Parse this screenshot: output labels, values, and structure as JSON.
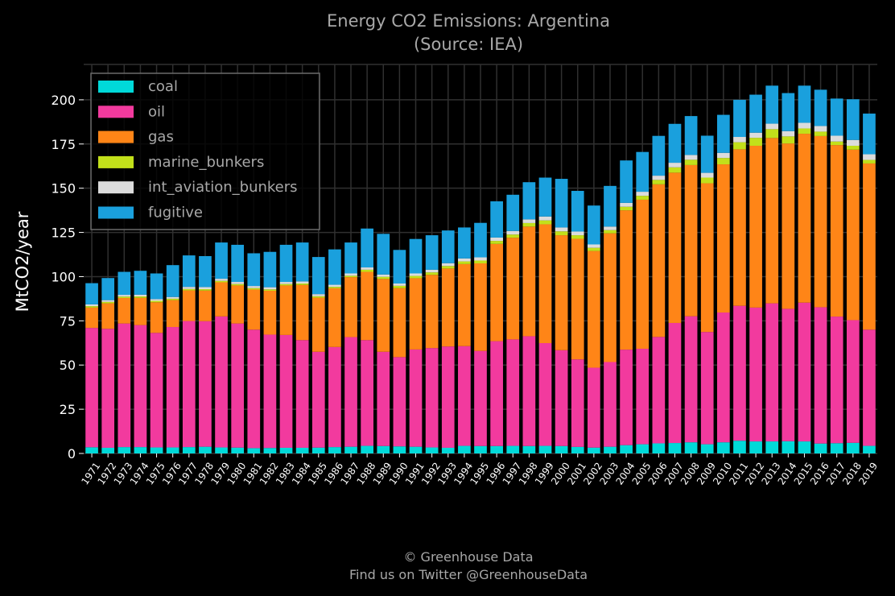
{
  "header": {
    "title": "Energy CO2 Emissions: Argentina",
    "subtitle": "(Source: IEA)"
  },
  "footer": {
    "line1": "© Greenhouse Data",
    "line2": "Find us on Twitter @GreenhouseData"
  },
  "colors": {
    "background": "#000000",
    "grid": "#303030",
    "text": "#a8a8a8",
    "coal": "#00d9d9",
    "oil": "#f23a9e",
    "gas": "#ff8517",
    "marine_bunkers": "#c2e01a",
    "int_aviation_bunkers": "#dcdcdc",
    "fugitive": "#1aa0dd"
  },
  "chart_data": {
    "type": "bar",
    "stacked": true,
    "title": "Energy CO2 Emissions: Argentina\n(Source: IEA)",
    "xlabel": "",
    "ylabel": "MtCO2/year",
    "ylim": [
      0,
      220
    ],
    "yticks": [
      0,
      25,
      50,
      75,
      100,
      125,
      150,
      175,
      200
    ],
    "grid": true,
    "legend_position": "top-left",
    "categories": [
      "1971",
      "1972",
      "1973",
      "1974",
      "1975",
      "1976",
      "1977",
      "1978",
      "1979",
      "1980",
      "1981",
      "1982",
      "1983",
      "1984",
      "1985",
      "1986",
      "1987",
      "1988",
      "1989",
      "1990",
      "1991",
      "1992",
      "1993",
      "1994",
      "1995",
      "1996",
      "1997",
      "1998",
      "1999",
      "2000",
      "2001",
      "2002",
      "2003",
      "2004",
      "2005",
      "2006",
      "2007",
      "2008",
      "2009",
      "2010",
      "2011",
      "2012",
      "2013",
      "2014",
      "2015",
      "2016",
      "2017",
      "2018",
      "2019"
    ],
    "series": [
      {
        "name": "coal",
        "color": "#00d9d9",
        "values": [
          3.5,
          3.2,
          3.6,
          3.6,
          3.4,
          3.4,
          3.6,
          3.8,
          3.4,
          3.3,
          3.0,
          3.1,
          3.2,
          3.2,
          3.3,
          3.6,
          3.8,
          4.3,
          4.2,
          4.0,
          3.8,
          3.4,
          3.2,
          4.3,
          4.2,
          4.2,
          4.3,
          4.2,
          4.3,
          4.2,
          3.7,
          3.3,
          3.8,
          4.7,
          5.2,
          5.7,
          5.9,
          6.3,
          5.2,
          6.3,
          7.2,
          6.8,
          6.8,
          6.9,
          6.8,
          5.6,
          5.8,
          6.0,
          4.3
        ]
      },
      {
        "name": "oil",
        "color": "#f23a9e",
        "values": [
          67.5,
          67.3,
          69.9,
          69.0,
          64.8,
          68.1,
          71.3,
          71.0,
          74.1,
          70.2,
          67.0,
          64.1,
          63.8,
          60.9,
          54.2,
          56.6,
          62.0,
          59.8,
          53.3,
          50.5,
          55.0,
          56.2,
          57.3,
          56.4,
          53.8,
          59.3,
          60.2,
          62.1,
          58.1,
          54.2,
          49.5,
          45.2,
          47.9,
          54.0,
          54.0,
          60.2,
          67.9,
          71.3,
          63.5,
          73.4,
          76.3,
          75.7,
          78.1,
          74.9,
          78.5,
          77.1,
          71.6,
          69.4,
          65.7
        ]
      },
      {
        "name": "gas",
        "color": "#ff8517",
        "values": [
          11.5,
          14.4,
          14.4,
          15.4,
          17.3,
          15.2,
          17.3,
          17.3,
          19.3,
          21.5,
          22.7,
          24.8,
          28.0,
          31.2,
          30.6,
          33.2,
          33.9,
          38.6,
          41.2,
          39.0,
          40.3,
          41.4,
          44.1,
          46.4,
          49.5,
          55.0,
          57.5,
          62.0,
          67.2,
          65.0,
          68.2,
          66.0,
          72.8,
          78.8,
          84.3,
          86.3,
          85.0,
          85.5,
          84.1,
          83.8,
          88.5,
          91.5,
          93.5,
          93.5,
          95.5,
          96.8,
          97.0,
          96.4,
          94.0
        ]
      },
      {
        "name": "marine_bunkers",
        "color": "#c2e01a",
        "values": [
          0.8,
          0.8,
          0.8,
          0.8,
          0.8,
          0.8,
          0.8,
          0.8,
          0.8,
          0.8,
          0.8,
          0.8,
          0.8,
          0.8,
          0.8,
          0.8,
          0.8,
          1.2,
          1.2,
          1.3,
          1.3,
          1.4,
          1.4,
          1.5,
          1.6,
          1.7,
          1.8,
          2.0,
          2.2,
          2.2,
          2.0,
          1.8,
          1.8,
          2.0,
          2.2,
          2.5,
          3.0,
          3.0,
          3.2,
          3.6,
          4.0,
          4.5,
          5.0,
          4.0,
          3.0,
          2.5,
          2.0,
          2.2,
          2.0
        ]
      },
      {
        "name": "int_aviation_bunkers",
        "color": "#dcdcdc",
        "values": [
          1.0,
          1.0,
          1.0,
          1.0,
          1.0,
          1.0,
          1.2,
          1.2,
          1.2,
          1.2,
          1.2,
          1.2,
          1.2,
          1.2,
          1.2,
          1.2,
          1.3,
          1.3,
          1.3,
          1.3,
          1.4,
          1.5,
          1.6,
          1.7,
          1.8,
          1.9,
          2.0,
          2.1,
          2.2,
          2.2,
          2.1,
          1.9,
          2.0,
          2.2,
          2.3,
          2.4,
          2.6,
          2.7,
          2.7,
          2.9,
          3.0,
          2.9,
          3.1,
          3.0,
          3.2,
          3.2,
          3.3,
          3.3,
          3.2
        ]
      },
      {
        "name": "fugitive",
        "color": "#1aa0dd",
        "values": [
          12.0,
          12.5,
          13.0,
          13.5,
          14.5,
          18.0,
          17.8,
          17.5,
          20.5,
          21.0,
          18.5,
          20.0,
          21.0,
          22.0,
          21.0,
          20.0,
          17.5,
          22.0,
          23.0,
          19.0,
          19.5,
          19.5,
          18.5,
          17.5,
          19.5,
          20.5,
          20.5,
          21.0,
          22.0,
          27.5,
          23.0,
          22.0,
          23.0,
          24.0,
          22.5,
          22.5,
          22.0,
          22.0,
          21.0,
          21.5,
          21.0,
          21.5,
          21.5,
          21.5,
          21.0,
          20.5,
          21.0,
          23.0,
          23.0
        ]
      }
    ]
  }
}
